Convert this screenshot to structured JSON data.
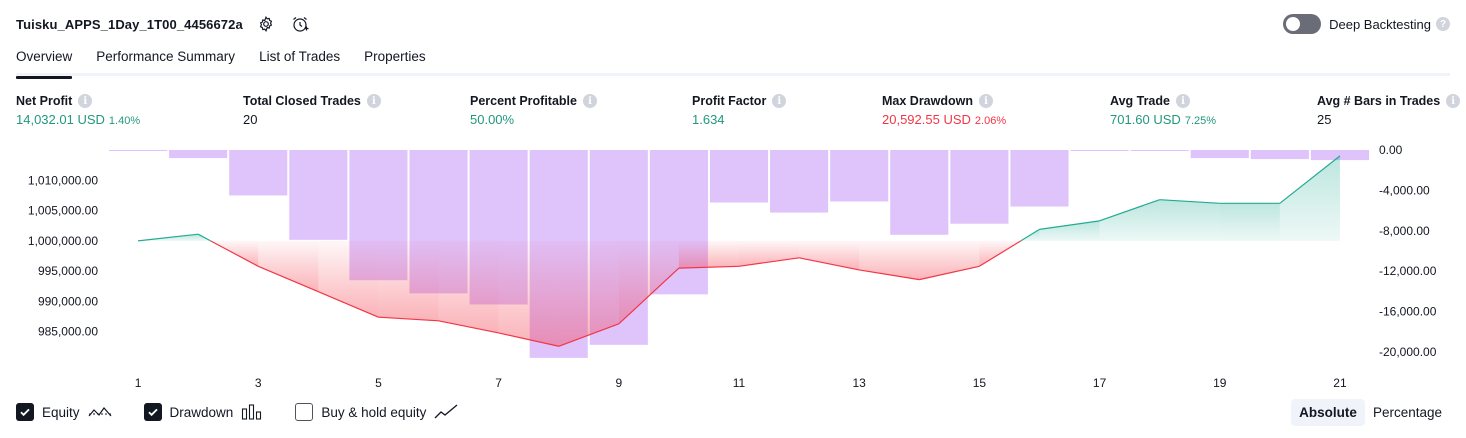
{
  "header": {
    "strategy_name": "Tuisku_APPS_1Day_1T00_4456672a",
    "settings_icon": "gear-icon",
    "alert_icon": "alarm-clock-plus-icon"
  },
  "deep_backtesting": {
    "label": "Deep Backtesting",
    "enabled": false
  },
  "tabs": [
    {
      "label": "Overview",
      "active": true
    },
    {
      "label": "Performance Summary",
      "active": false
    },
    {
      "label": "List of Trades",
      "active": false
    },
    {
      "label": "Properties",
      "active": false
    }
  ],
  "stats": [
    {
      "label": "Net Profit",
      "value": "14,032.01 USD",
      "pct": "1.40%",
      "tone": "green"
    },
    {
      "label": "Total Closed Trades",
      "value": "20",
      "pct": "",
      "tone": "neutral"
    },
    {
      "label": "Percent Profitable",
      "value": "50.00%",
      "pct": "",
      "tone": "green"
    },
    {
      "label": "Profit Factor",
      "value": "1.634",
      "pct": "",
      "tone": "green"
    },
    {
      "label": "Max Drawdown",
      "value": "20,592.55 USD",
      "pct": "2.06%",
      "tone": "red"
    },
    {
      "label": "Avg Trade",
      "value": "701.60 USD",
      "pct": "7.25%",
      "tone": "green"
    },
    {
      "label": "Avg # Bars in Trades",
      "value": "25",
      "pct": "",
      "tone": "neutral"
    }
  ],
  "chart_data": {
    "type": "line",
    "x": [
      1,
      2,
      3,
      4,
      5,
      6,
      7,
      8,
      9,
      10,
      11,
      12,
      13,
      14,
      15,
      16,
      17,
      18,
      19,
      20,
      21
    ],
    "x_tick_labels": [
      "1",
      "3",
      "5",
      "7",
      "9",
      "11",
      "13",
      "15",
      "17",
      "19",
      "21"
    ],
    "series": [
      {
        "name": "Equity",
        "axis": "left",
        "values": [
          1000000,
          1001100,
          995800,
          991600,
          987400,
          986800,
          984800,
          982600,
          986300,
          995500,
          995800,
          997200,
          995200,
          993600,
          995800,
          1001900,
          1003300,
          1006800,
          1006200,
          1006200,
          1014032
        ]
      },
      {
        "name": "Drawdown",
        "axis": "right",
        "type": "bar",
        "values": [
          -100,
          -800,
          -4500,
          -8900,
          -12900,
          -14200,
          -15300,
          -20592,
          -19300,
          -14300,
          -5200,
          -6200,
          -5100,
          -8400,
          -7300,
          -5600,
          -10,
          -10,
          -800,
          -900,
          -1000
        ]
      }
    ],
    "baseline": 1000000,
    "left_axis": {
      "ticks": [
        "1,010,000.00",
        "1,005,000.00",
        "1,000,000.00",
        "995,000.00",
        "990,000.00",
        "985,000.00"
      ],
      "range": [
        980000,
        1015000
      ]
    },
    "right_axis": {
      "ticks": [
        "0.00",
        "-4,000.00",
        "-8,000.00",
        "-12,000.00",
        "-16,000.00",
        "-20,000.00"
      ],
      "range": [
        -21000,
        0
      ]
    },
    "colors": {
      "equity_up": "#22ab94",
      "equity_down": "#f23645",
      "drawdown_bar": "#d9b8fa"
    }
  },
  "legend": [
    {
      "label": "Equity",
      "checked": true,
      "icon": "equity-line-icon"
    },
    {
      "label": "Drawdown",
      "checked": true,
      "icon": "bar-chart-icon"
    },
    {
      "label": "Buy & hold equity",
      "checked": false,
      "icon": "trend-line-icon"
    }
  ],
  "mode": {
    "options": [
      "Absolute",
      "Percentage"
    ],
    "selected": "Absolute"
  }
}
